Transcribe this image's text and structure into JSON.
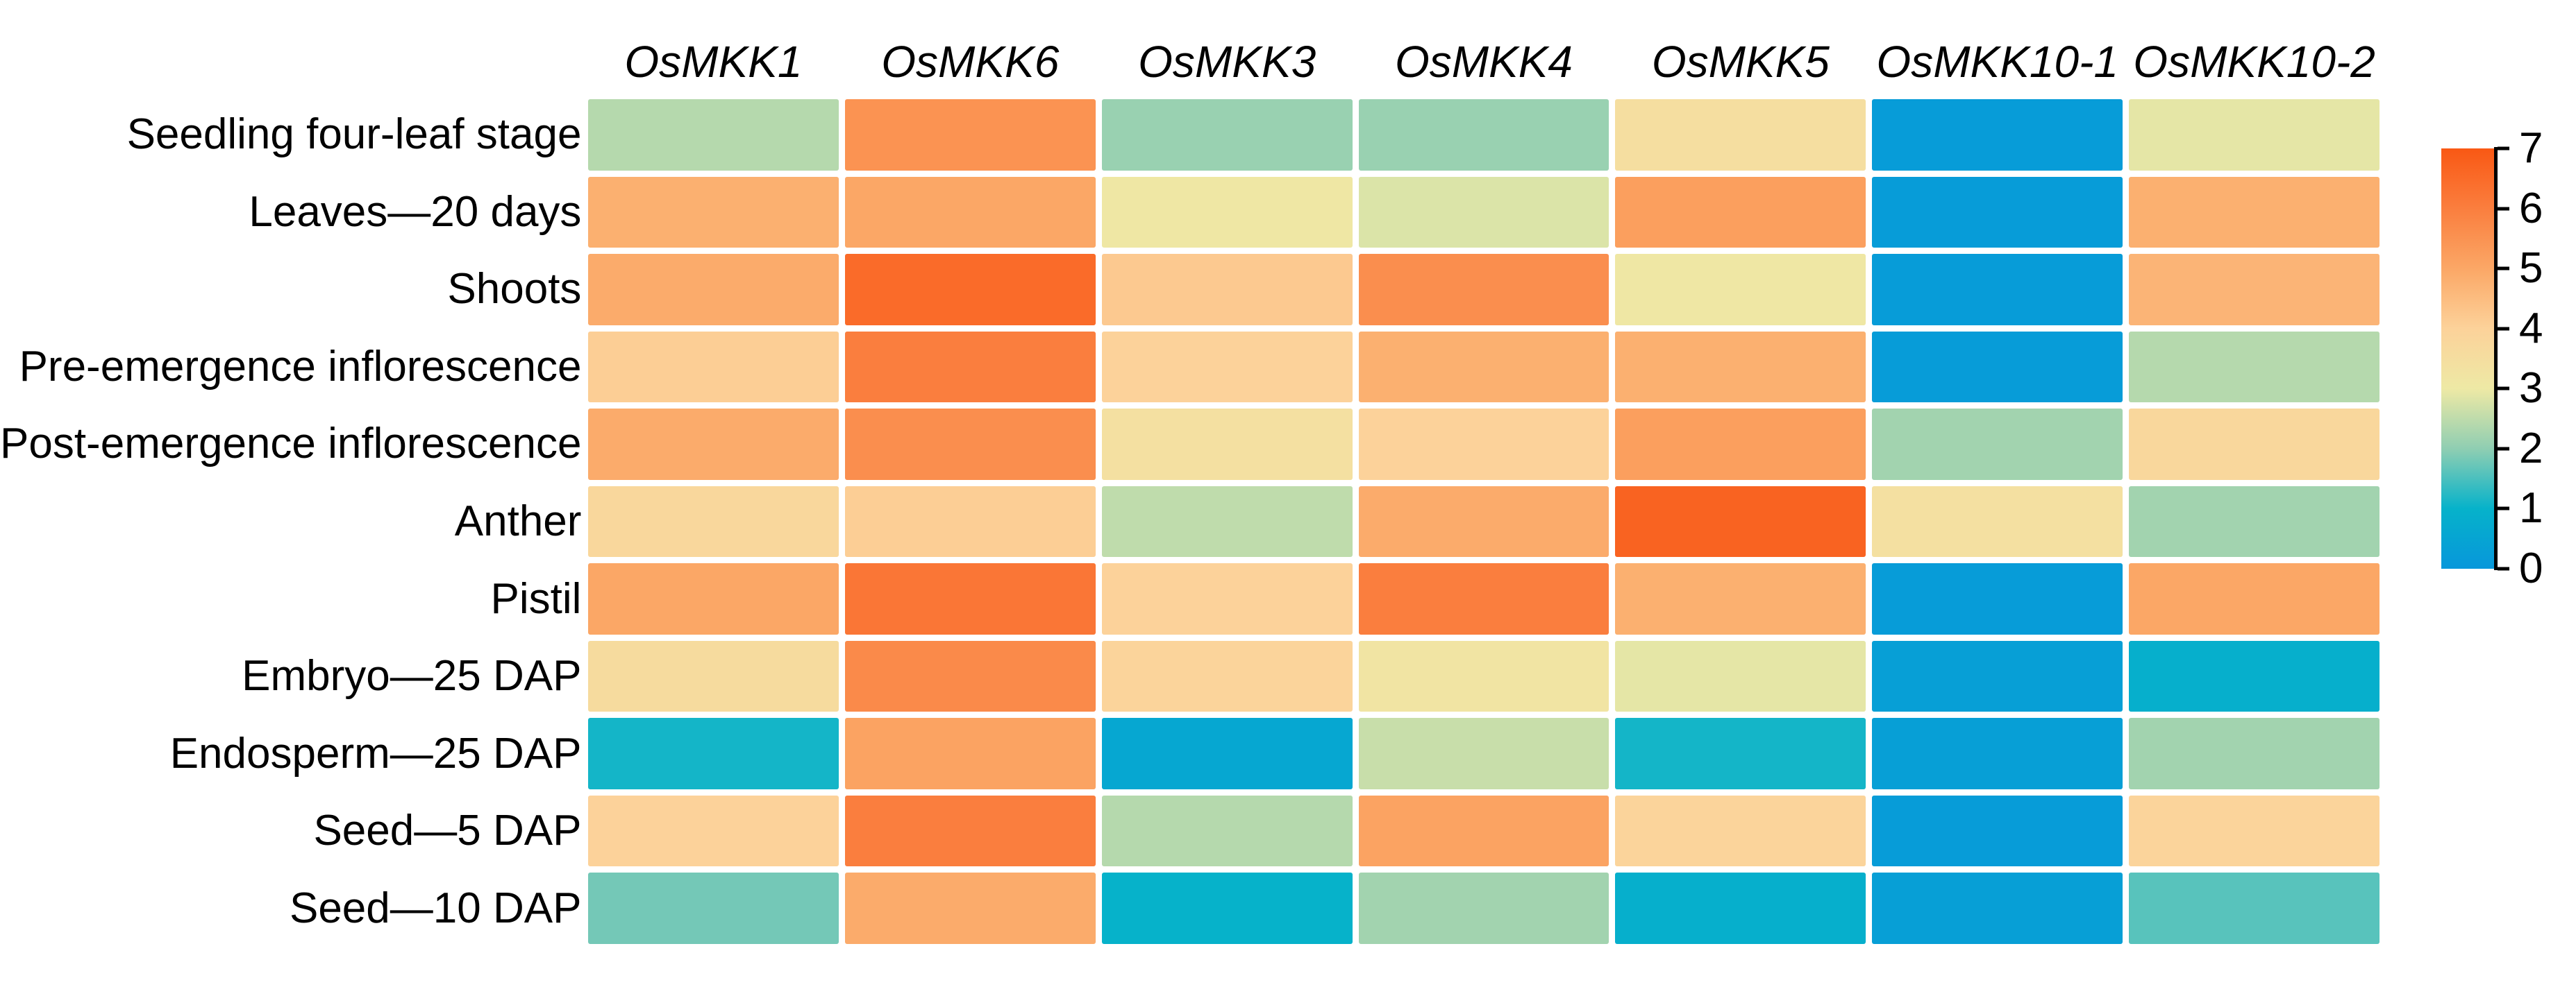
{
  "figure": {
    "background": "#ffffff",
    "text_color": "#000000"
  },
  "chart_data": {
    "type": "heatmap",
    "title": "",
    "columns": [
      "OsMKK1",
      "OsMKK6",
      "OsMKK3",
      "OsMKK4",
      "OsMKK5",
      "OsMKK10-1",
      "OsMKK10-2"
    ],
    "rows": [
      "Seedling four-leaf stage",
      "Leaves—20 days",
      "Shoots",
      "Pre-emergence inflorescence",
      "Post-emergence inflorescence",
      "Anther",
      "Pistil",
      "Embryo—25 DAP",
      "Endosperm—25 DAP",
      "Seed—5 DAP",
      "Seed—10 DAP"
    ],
    "values": [
      [
        2.4,
        5.5,
        2.1,
        2.1,
        3.5,
        0.2,
        2.9
      ],
      [
        4.8,
        5.0,
        3.1,
        2.8,
        5.2,
        0.2,
        4.8
      ],
      [
        4.9,
        6.5,
        4.2,
        5.6,
        3.1,
        0.2,
        4.7
      ],
      [
        4.1,
        6.0,
        4.0,
        4.8,
        4.8,
        0.2,
        2.4
      ],
      [
        4.9,
        5.6,
        3.4,
        4.0,
        5.2,
        2.2,
        3.8
      ],
      [
        3.8,
        4.1,
        2.5,
        4.9,
        6.7,
        3.4,
        2.2
      ],
      [
        5.0,
        6.2,
        4.0,
        6.0,
        4.8,
        0.2,
        5.0
      ],
      [
        3.6,
        5.7,
        3.9,
        3.2,
        2.9,
        0.3,
        0.9
      ],
      [
        1.1,
        5.1,
        0.6,
        2.6,
        1.1,
        0.3,
        2.2
      ],
      [
        4.0,
        6.0,
        2.4,
        5.1,
        3.9,
        0.2,
        3.9
      ],
      [
        1.8,
        4.9,
        1.0,
        2.2,
        0.9,
        0.3,
        1.6
      ]
    ],
    "value_range": [
      0,
      7
    ],
    "colormap_stops": [
      {
        "value": 0,
        "color": "#0797db"
      },
      {
        "value": 1,
        "color": "#06b2ca"
      },
      {
        "value": 2,
        "color": "#8fceb2"
      },
      {
        "value": 3,
        "color": "#eee9a5"
      },
      {
        "value": 4,
        "color": "#fcd29a"
      },
      {
        "value": 5,
        "color": "#fba766"
      },
      {
        "value": 6,
        "color": "#fa7e3e"
      },
      {
        "value": 7,
        "color": "#f95814"
      }
    ],
    "colorbar": {
      "position": "right",
      "ticks": [
        0,
        1,
        2,
        3,
        4,
        5,
        6,
        7
      ]
    },
    "xlabel": "",
    "ylabel": "",
    "grid": false,
    "legend_position": "right"
  }
}
